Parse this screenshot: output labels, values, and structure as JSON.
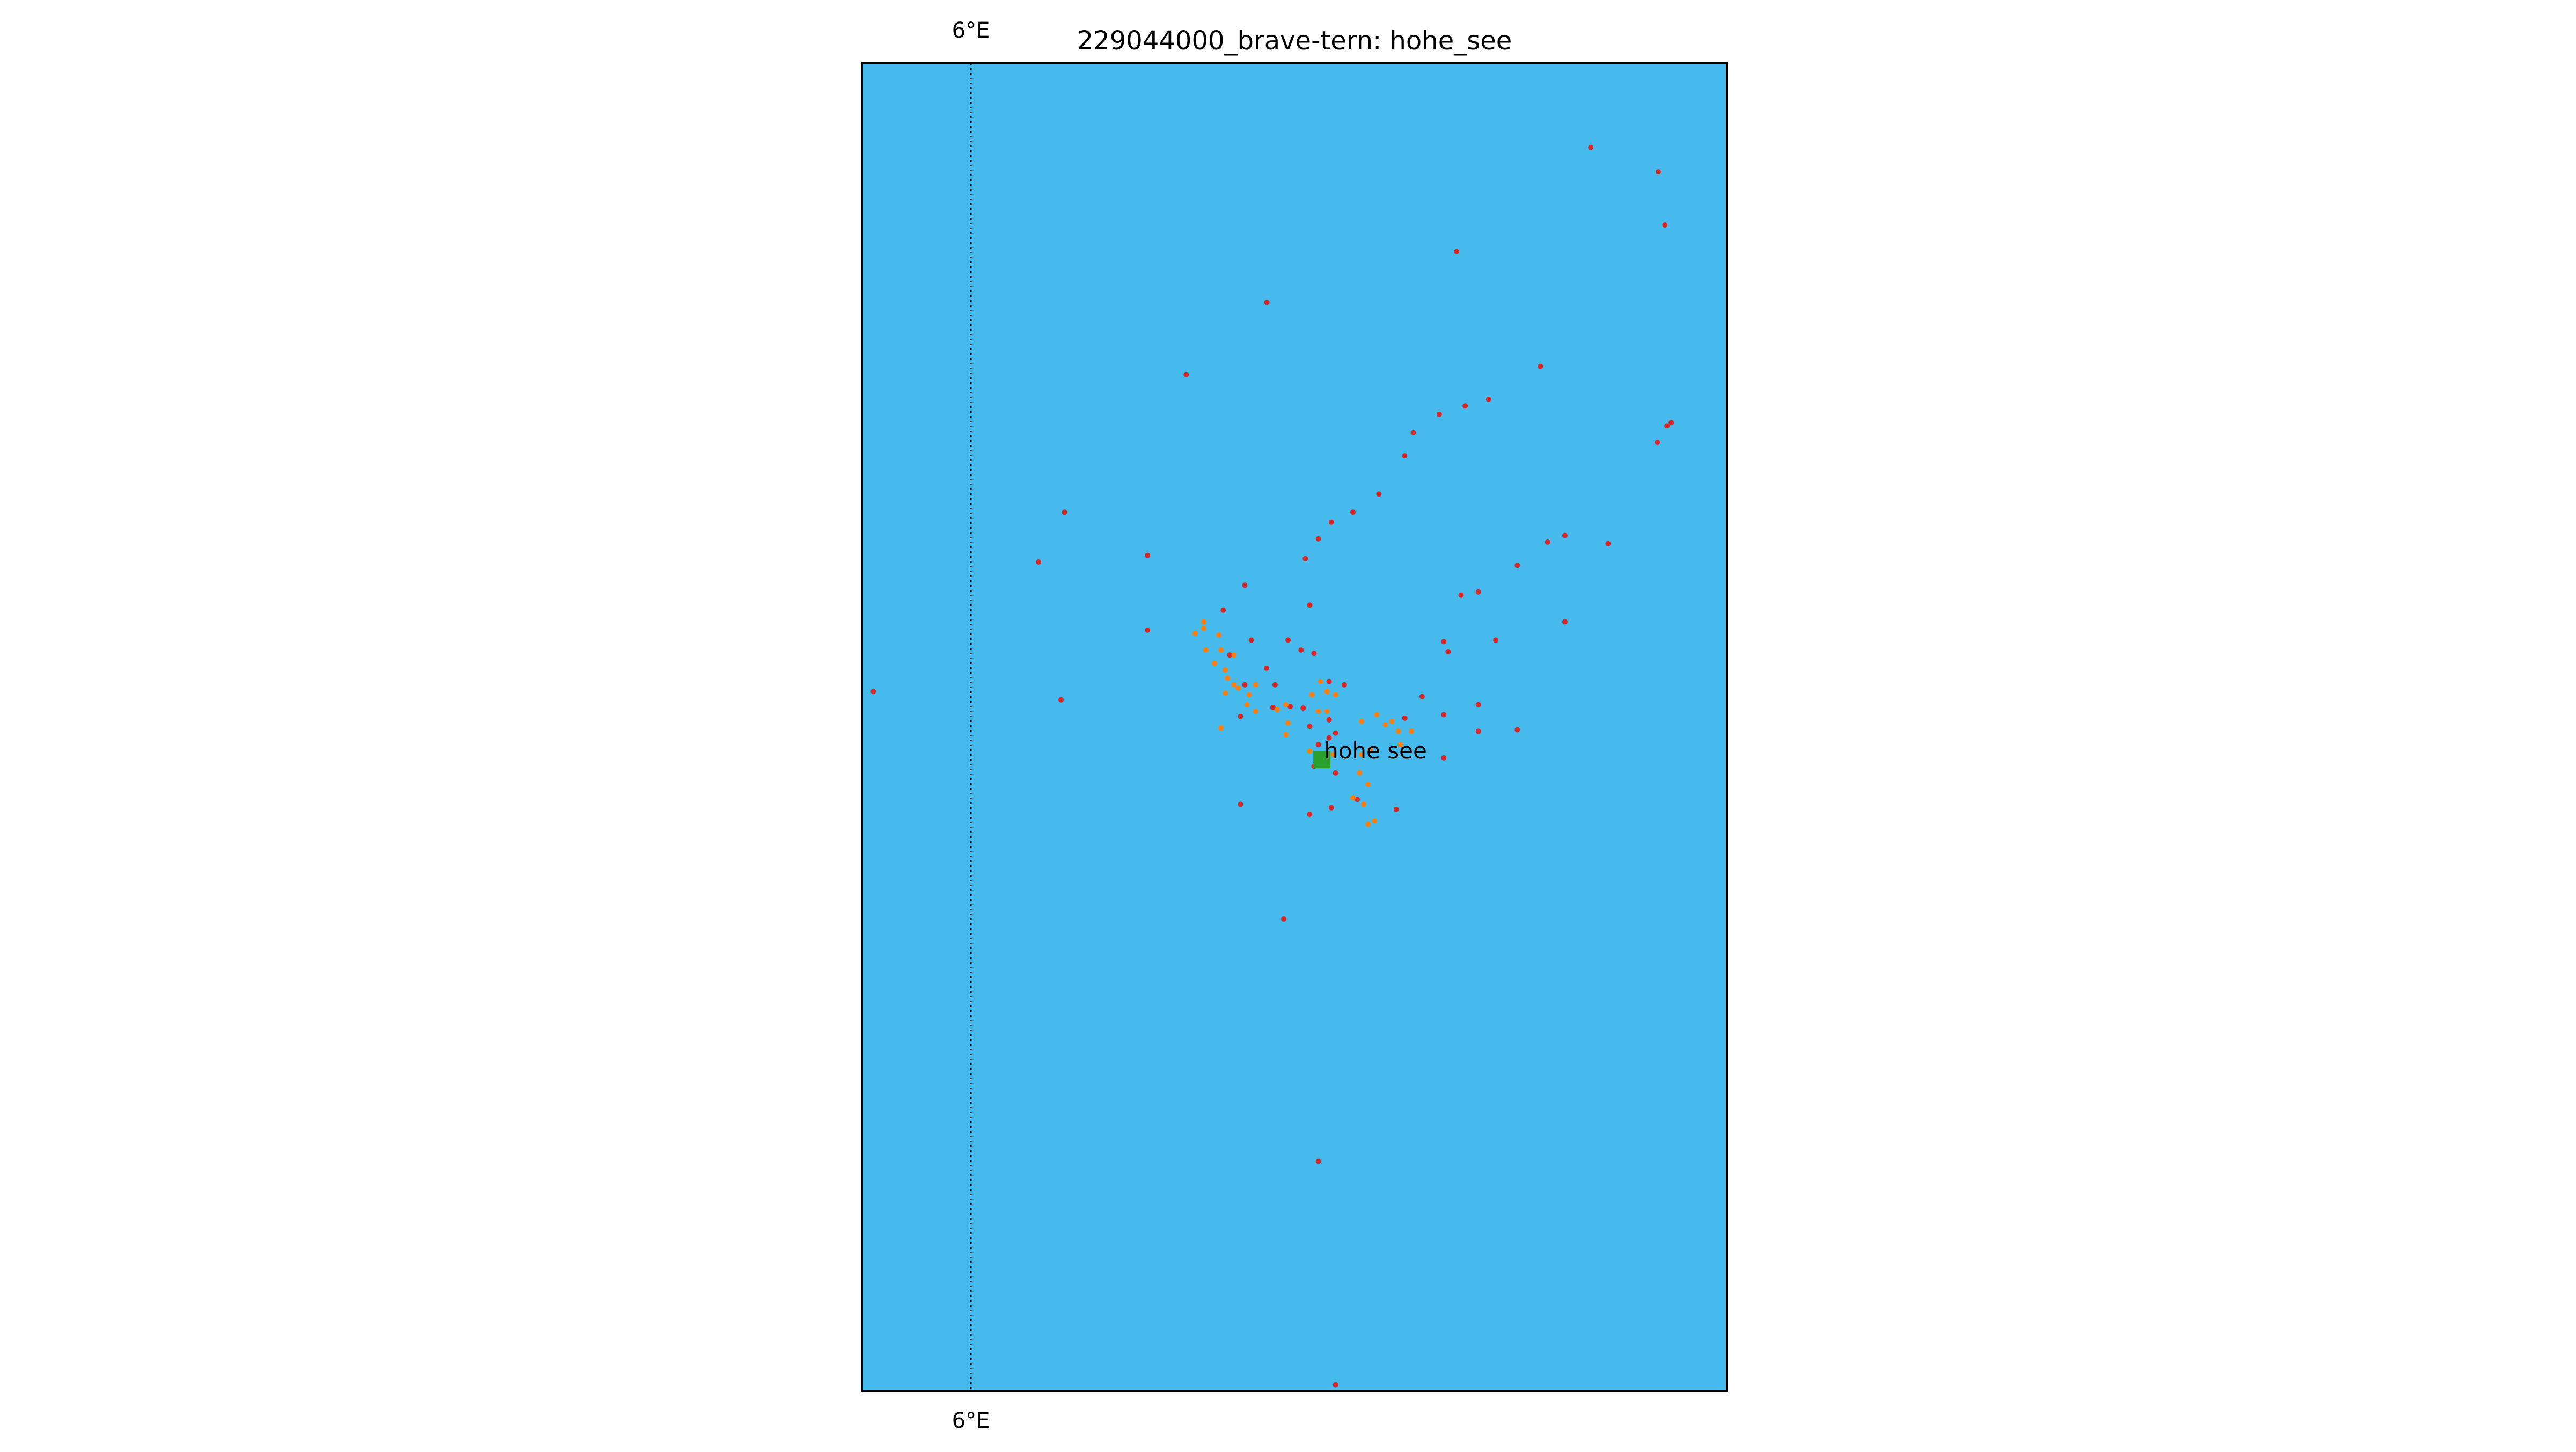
{
  "title": "229044000_brave-tern: hohe_see",
  "map": {
    "sea_color": "#46baec",
    "frame_color": "#000000",
    "graticule": {
      "label": "6°E",
      "style": "dotted"
    },
    "site": {
      "label": "hohe see",
      "marker_color": "#2ca02c",
      "marker_shape": "square"
    },
    "colors": {
      "red_points": "#d62728",
      "orange_points": "#ff7f0e"
    }
  },
  "chart_data": {
    "type": "scatter",
    "title": "229044000_brave-tern: hohe_see",
    "x_axis": {
      "tick_label": "6°E"
    },
    "series": [
      {
        "color": "#d62728",
        "points": [
          [
            0.8425,
            0.0633
          ],
          [
            0.9206,
            0.0817
          ],
          [
            0.9282,
            0.1217
          ],
          [
            0.6874,
            0.1417
          ],
          [
            0.4681,
            0.18
          ],
          [
            0.7843,
            0.2282
          ],
          [
            0.3749,
            0.2343
          ],
          [
            0.7244,
            0.253
          ],
          [
            0.6974,
            0.258
          ],
          [
            0.6674,
            0.2643
          ],
          [
            0.6374,
            0.278
          ],
          [
            0.9196,
            0.2854
          ],
          [
            0.9306,
            0.273
          ],
          [
            0.9356,
            0.2705
          ],
          [
            0.6274,
            0.2955
          ],
          [
            0.2342,
            0.338
          ],
          [
            0.5976,
            0.3243
          ],
          [
            0.5676,
            0.338
          ],
          [
            0.5426,
            0.3455
          ],
          [
            0.5276,
            0.358
          ],
          [
            0.8126,
            0.3555
          ],
          [
            0.7926,
            0.3605
          ],
          [
            0.8626,
            0.3617
          ],
          [
            0.2042,
            0.3755
          ],
          [
            0.3301,
            0.3705
          ],
          [
            0.5126,
            0.373
          ],
          [
            0.7576,
            0.378
          ],
          [
            0.4426,
            0.393
          ],
          [
            0.5176,
            0.408
          ],
          [
            0.4176,
            0.4118
          ],
          [
            0.7126,
            0.398
          ],
          [
            0.6926,
            0.4005
          ],
          [
            0.8126,
            0.4205
          ],
          [
            0.7326,
            0.4343
          ],
          [
            0.6726,
            0.4355
          ],
          [
            0.6776,
            0.443
          ],
          [
            0.0132,
            0.473
          ],
          [
            0.2302,
            0.4793
          ],
          [
            0.3301,
            0.4268
          ],
          [
            0.4251,
            0.4455
          ],
          [
            0.4501,
            0.4343
          ],
          [
            0.4926,
            0.4343
          ],
          [
            0.5076,
            0.4418
          ],
          [
            0.5226,
            0.4443
          ],
          [
            0.4676,
            0.4555
          ],
          [
            0.4776,
            0.468
          ],
          [
            0.4426,
            0.468
          ],
          [
            0.5401,
            0.4655
          ],
          [
            0.5576,
            0.468
          ],
          [
            0.6476,
            0.4768
          ],
          [
            0.6726,
            0.4905
          ],
          [
            0.7126,
            0.483
          ],
          [
            0.4751,
            0.485
          ],
          [
            0.4951,
            0.4843
          ],
          [
            0.5101,
            0.4855
          ],
          [
            0.5176,
            0.4993
          ],
          [
            0.5401,
            0.4943
          ],
          [
            0.5476,
            0.5043
          ],
          [
            0.6276,
            0.493
          ],
          [
            0.7126,
            0.503
          ],
          [
            0.7576,
            0.5018
          ],
          [
            0.6726,
            0.523
          ],
          [
            0.5276,
            0.513
          ],
          [
            0.5401,
            0.508
          ],
          [
            0.5226,
            0.5293
          ],
          [
            0.5476,
            0.5343
          ],
          [
            0.5726,
            0.5543
          ],
          [
            0.6176,
            0.5618
          ],
          [
            0.5426,
            0.5605
          ],
          [
            0.5176,
            0.5655
          ],
          [
            0.4376,
            0.558
          ],
          [
            0.4376,
            0.4918
          ],
          [
            0.4876,
            0.6443
          ],
          [
            0.5276,
            0.8268
          ],
          [
            0.5476,
            0.995
          ]
        ]
      },
      {
        "color": "#ff7f0e",
        "points": [
          [
            0.3851,
            0.4293
          ],
          [
            0.3951,
            0.4255
          ],
          [
            0.3976,
            0.4418
          ],
          [
            0.4076,
            0.4518
          ],
          [
            0.4201,
            0.4568
          ],
          [
            0.4226,
            0.463
          ],
          [
            0.4301,
            0.468
          ],
          [
            0.4301,
            0.4455
          ],
          [
            0.4151,
            0.4418
          ],
          [
            0.4201,
            0.4743
          ],
          [
            0.4351,
            0.4705
          ],
          [
            0.4551,
            0.468
          ],
          [
            0.4451,
            0.483
          ],
          [
            0.4551,
            0.488
          ],
          [
            0.4801,
            0.4868
          ],
          [
            0.4901,
            0.483
          ],
          [
            0.5276,
            0.488
          ],
          [
            0.5376,
            0.488
          ],
          [
            0.5201,
            0.4755
          ],
          [
            0.5301,
            0.4655
          ],
          [
            0.5376,
            0.473
          ],
          [
            0.5476,
            0.4755
          ],
          [
            0.4926,
            0.4968
          ],
          [
            0.5776,
            0.4955
          ],
          [
            0.5951,
            0.4905
          ],
          [
            0.6051,
            0.498
          ],
          [
            0.6126,
            0.4955
          ],
          [
            0.6201,
            0.503
          ],
          [
            0.6351,
            0.503
          ],
          [
            0.6226,
            0.513
          ],
          [
            0.5876,
            0.5168
          ],
          [
            0.5776,
            0.5205
          ],
          [
            0.5751,
            0.5343
          ],
          [
            0.5851,
            0.543
          ],
          [
            0.5676,
            0.553
          ],
          [
            0.5801,
            0.558
          ],
          [
            0.5926,
            0.5705
          ],
          [
            0.5851,
            0.573
          ],
          [
            0.5451,
            0.5205
          ],
          [
            0.5176,
            0.518
          ],
          [
            0.4901,
            0.5055
          ],
          [
            0.4151,
            0.5005
          ],
          [
            0.3951,
            0.4205
          ],
          [
            0.4126,
            0.4305
          ],
          [
            0.4476,
            0.4755
          ]
        ]
      }
    ],
    "site": {
      "label": "hohe see",
      "x": 0.5317,
      "y": 0.5243
    }
  }
}
